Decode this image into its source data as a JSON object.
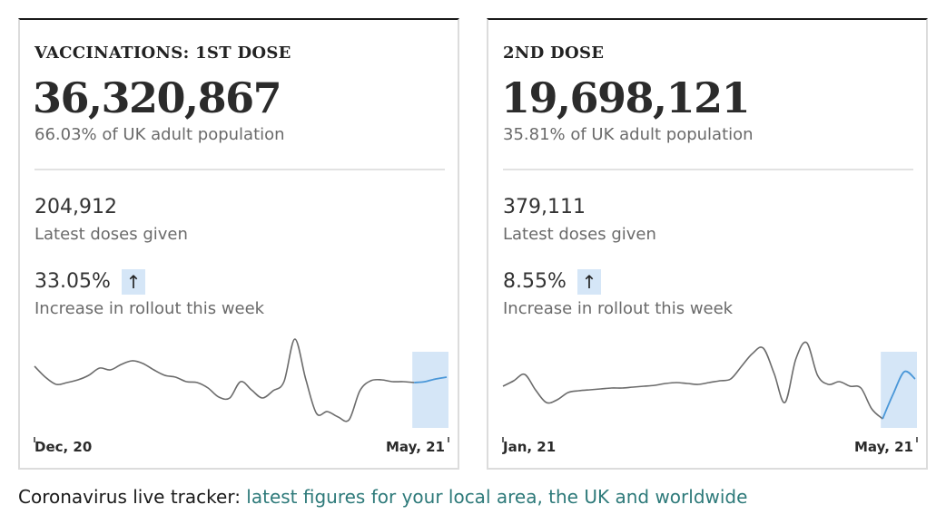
{
  "cards": [
    {
      "title": "VACCINATIONS: 1ST DOSE",
      "total": "36,320,867",
      "population_text": "66.03% of UK adult population",
      "latest_doses": "204,912",
      "latest_label": "Latest doses given",
      "increase": "33.05%",
      "increase_arrow": "↑",
      "increase_label": "Increase in rollout this week"
    },
    {
      "title": "2ND DOSE",
      "total": "19,698,121",
      "population_text": "35.81% of UK adult population",
      "latest_doses": "379,111",
      "latest_label": "Latest doses given",
      "increase": "8.55%",
      "increase_arrow": "↑",
      "increase_label": "Increase in rollout this week"
    }
  ],
  "footer": {
    "prefix": "Coronavirus live tracker: ",
    "link": "latest figures for your local area, the UK and worldwide"
  },
  "colors": {
    "line": "#6b6b6b",
    "highlight_line": "#4a97d8",
    "highlight_band": "#d5e6f7",
    "link": "#2e7a7a"
  },
  "chart_data": [
    {
      "type": "line",
      "title": "",
      "x_start_label": "Dec, 20",
      "x_end_label": "May, 21",
      "highlight": "last week",
      "values": [
        0.62,
        0.5,
        0.42,
        0.44,
        0.47,
        0.52,
        0.6,
        0.58,
        0.64,
        0.68,
        0.65,
        0.58,
        0.52,
        0.5,
        0.45,
        0.44,
        0.38,
        0.28,
        0.27,
        0.45,
        0.36,
        0.27,
        0.35,
        0.45,
        0.92,
        0.48,
        0.1,
        0.12,
        0.06,
        0.03,
        0.35,
        0.46,
        0.47,
        0.45,
        0.45,
        0.44,
        0.45,
        0.48,
        0.5
      ],
      "highlight_from_index": 35
    },
    {
      "type": "line",
      "title": "",
      "x_start_label": "Jan, 21",
      "x_end_label": "May, 21",
      "highlight": "last week",
      "values": [
        0.4,
        0.46,
        0.53,
        0.36,
        0.22,
        0.25,
        0.33,
        0.35,
        0.36,
        0.37,
        0.38,
        0.38,
        0.39,
        0.4,
        0.41,
        0.43,
        0.44,
        0.43,
        0.42,
        0.44,
        0.46,
        0.48,
        0.62,
        0.76,
        0.82,
        0.54,
        0.22,
        0.7,
        0.88,
        0.52,
        0.42,
        0.45,
        0.4,
        0.38,
        0.15,
        0.04,
        0.32,
        0.56,
        0.48
      ],
      "highlight_from_index": 35
    }
  ]
}
